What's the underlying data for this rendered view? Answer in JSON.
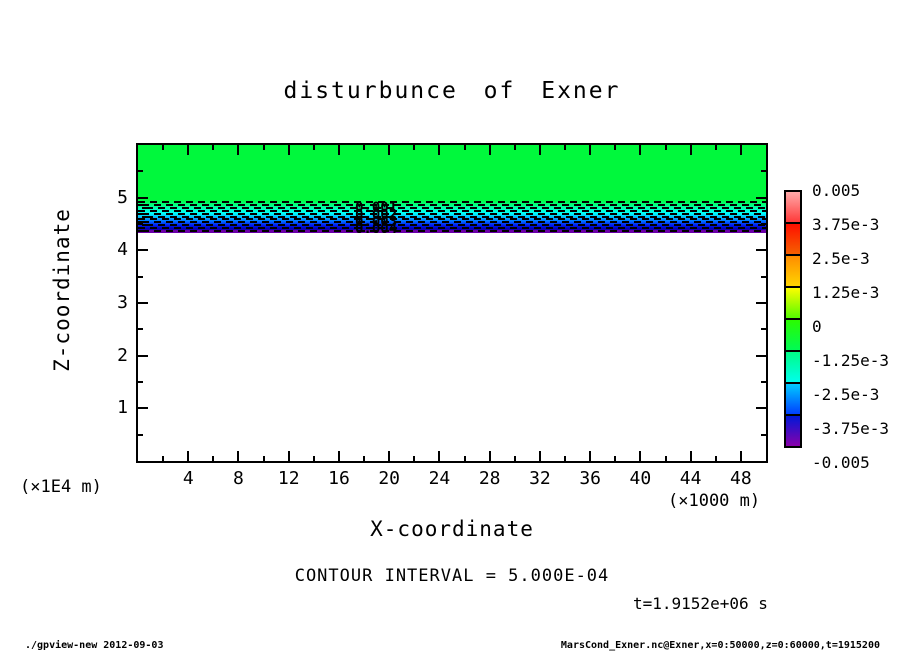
{
  "title": "disturbunce of Exner",
  "annotations": {
    "contour_interval": "CONTOUR INTERVAL = 5.000E-04",
    "time": "t=1.9152e+06 s"
  },
  "footer": {
    "left": "./gpview-new  2012-09-03",
    "right": "MarsCond_Exner.nc@Exner,x=0:50000,z=0:60000,t=1915200"
  },
  "chart_data": {
    "type": "heatmap",
    "subtype": "filled-contour",
    "title": "disturbunce of Exner",
    "xlabel": "X-coordinate",
    "ylabel": "Z-coordinate",
    "x_unit": "(×1000 m)",
    "y_unit": "(×1E4 m)",
    "xlim": [
      0,
      50
    ],
    "ylim": [
      0,
      6
    ],
    "x_major_ticks": [
      4,
      8,
      12,
      16,
      20,
      24,
      28,
      32,
      36,
      40,
      44,
      48
    ],
    "x_minor_step": 2,
    "y_major_ticks": [
      1,
      2,
      3,
      4,
      5
    ],
    "y_minor_step": 0.5,
    "grid": false,
    "contour_interval": 0.0005,
    "contour_labels": [
      {
        "text": "0.001"
      },
      {
        "text": "0.002"
      },
      {
        "text": "0.003"
      },
      {
        "text": "0.004"
      }
    ],
    "field": {
      "uniform_in_x": true,
      "profile": [
        {
          "z": 6.0,
          "value": 0
        },
        {
          "z": 4.95,
          "value": 0
        },
        {
          "z": 4.35,
          "value": -0.005
        }
      ],
      "note": "value 0 (green) above z=4.95e4 m; sharp negative gradient layer 4.35-4.95e4 m with ~11 dashed contours; white (no shading) below z=4.35e4 m",
      "zero_color": "#00F83C",
      "band_top_z": 4.95,
      "band_bottom_z": 4.35,
      "band_gradient_stops": [
        "#00FB40 0%",
        "#00FF82 16%",
        "#00FFC8 30%",
        "#00FEFE 42%",
        "#00B4FF 55%",
        "#0063FF 68%",
        "#0016EE 80%",
        "#0000B4 90%",
        "#5A00A8 100%"
      ],
      "band_bottom_line_color": "#6A00A8",
      "contour_line_count": 11,
      "contour_line_color": "#000000"
    },
    "colorbar": {
      "labels": [
        "0.005",
        "3.75e-3",
        "2.5e-3",
        "1.25e-3",
        "0",
        "-1.25e-3",
        "-2.5e-3",
        "-3.75e-3",
        "-0.005"
      ],
      "segments": [
        {
          "from": "#FFAAAA",
          "to": "#FF3A3A"
        },
        {
          "from": "#FF0F00",
          "to": "#F56000"
        },
        {
          "from": "#FF8C00",
          "to": "#FFD400"
        },
        {
          "from": "#FDFD00",
          "to": "#55FB00"
        },
        {
          "from": "#2BFB00",
          "to": "#00FB55"
        },
        {
          "from": "#00FC86",
          "to": "#00FEEC"
        },
        {
          "from": "#00CCFF",
          "to": "#0040FF"
        },
        {
          "from": "#0018D8",
          "to": "#8800AA"
        }
      ]
    },
    "legend": null
  }
}
